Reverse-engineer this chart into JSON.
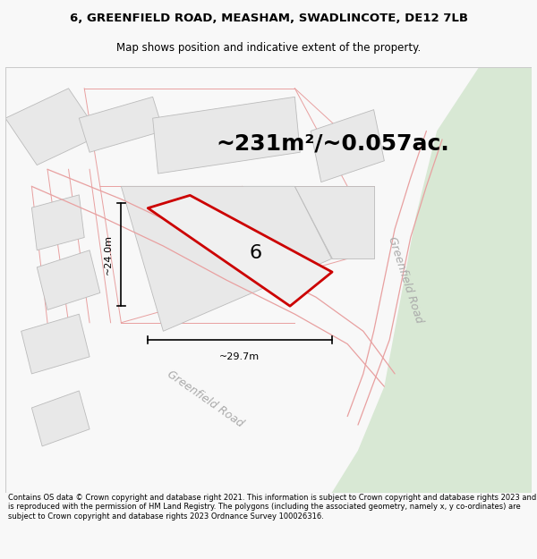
{
  "title_line1": "6, GREENFIELD ROAD, MEASHAM, SWADLINCOTE, DE12 7LB",
  "title_line2": "Map shows position and indicative extent of the property.",
  "area_text": "~231m²/~0.057ac.",
  "dim1_text": "~24.0m",
  "dim2_text": "~29.7m",
  "plot_number": "6",
  "road_label_right": "Greenfield Road",
  "road_label_bottom": "Greenfield Road",
  "footer_text": "Contains OS data © Crown copyright and database right 2021. This information is subject to Crown copyright and database rights 2023 and is reproduced with the permission of HM Land Registry. The polygons (including the associated geometry, namely x, y co-ordinates) are subject to Crown copyright and database rights 2023 Ordnance Survey 100026316.",
  "bg_color": "#f8f8f8",
  "map_bg": "#ffffff",
  "road_green": "#d8e8d4",
  "plot_fill": "#e8e8e8",
  "plot_outline": "#cc0000",
  "building_fill": "#e8e8e8",
  "building_outline": "#bbbbbb",
  "road_line": "#e8a0a0",
  "road_line2": "#c88080",
  "text_color": "#000000",
  "dim_line_color": "#000000",
  "title_fontsize": 9.5,
  "subtitle_fontsize": 8.5,
  "area_fontsize": 18,
  "dim_fontsize": 8,
  "label_fontsize": 9,
  "footer_fontsize": 6.0
}
